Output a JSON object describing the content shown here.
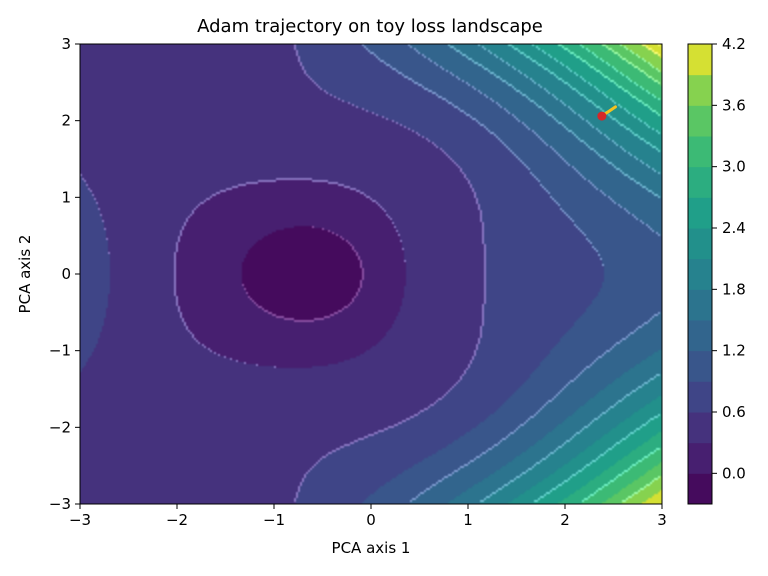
{
  "chart_data": {
    "type": "heatmap",
    "subtype": "filled-contour",
    "title": "Adam trajectory on toy loss landscape",
    "xlabel": "PCA axis 1",
    "ylabel": "PCA axis 2",
    "xlim": [
      -3,
      3
    ],
    "ylim": [
      -3,
      3
    ],
    "xticks": [
      "−3",
      "−2",
      "−1",
      "0",
      "1",
      "2",
      "3"
    ],
    "yticks": [
      "−3",
      "−2",
      "−1",
      "0",
      "1",
      "2",
      "3"
    ],
    "colorbar": {
      "colormap": "viridis",
      "vmin": -0.3,
      "vmax": 4.2,
      "level_step": 0.3,
      "ticks": [
        "0.0",
        "0.6",
        "1.2",
        "1.8",
        "2.4",
        "3.0",
        "3.6",
        "4.2"
      ]
    },
    "landscape_minimum": {
      "x": -0.6,
      "y": 0.0,
      "value": -0.3
    },
    "trajectory": {
      "color": "#f4c21f",
      "points": [
        [
          2.52,
          2.18
        ],
        [
          2.45,
          2.12
        ],
        [
          2.4,
          2.08
        ],
        [
          2.38,
          2.06
        ]
      ]
    },
    "start_marker": {
      "x": 2.38,
      "y": 2.06,
      "color": "#d62728"
    },
    "grid": false,
    "legend": "none"
  }
}
